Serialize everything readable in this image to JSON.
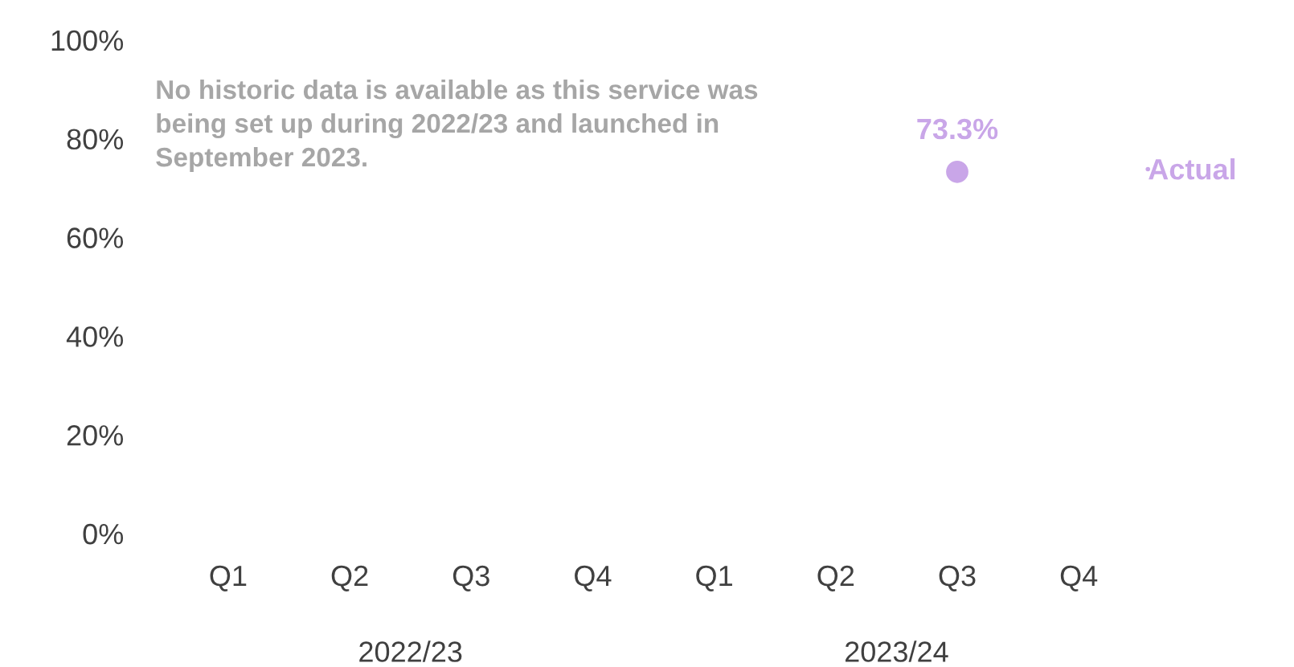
{
  "chart_data": {
    "type": "line",
    "categories": [
      "Q1",
      "Q2",
      "Q3",
      "Q4",
      "Q1",
      "Q2",
      "Q3",
      "Q4"
    ],
    "series": [
      {
        "name": "Actual",
        "color": "#c9a6e8",
        "values": [
          null,
          null,
          null,
          null,
          null,
          null,
          73.3,
          null
        ],
        "value_labels": [
          null,
          null,
          null,
          null,
          null,
          null,
          "73.3%",
          null
        ]
      }
    ],
    "ylim": [
      0,
      100
    ],
    "yticks": [
      {
        "value": 0,
        "label": "0%"
      },
      {
        "value": 20,
        "label": "20%"
      },
      {
        "value": 40,
        "label": "40%"
      },
      {
        "value": 60,
        "label": "60%"
      },
      {
        "value": 80,
        "label": "80%"
      },
      {
        "value": 100,
        "label": "100%"
      }
    ],
    "marker": "circle",
    "legend": "right",
    "grid": false,
    "annotations": [
      "No historic data is available as this service was being set up during 2022/23 and launched in September 2023.",
      "2022/23",
      "2023/24"
    ]
  }
}
